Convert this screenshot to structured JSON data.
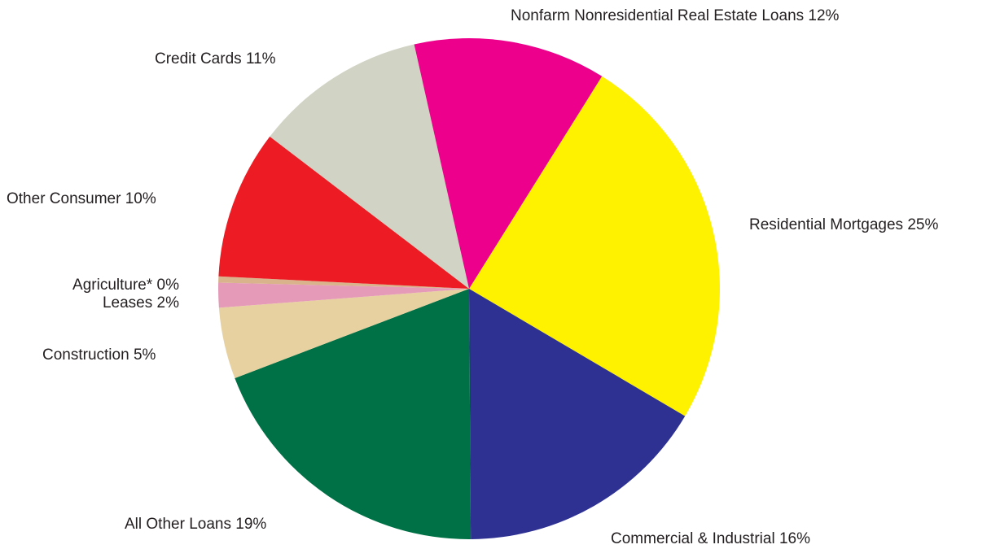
{
  "chart_data": {
    "type": "pie",
    "categories": [
      "Residential Mortgages",
      "Commercial & Industrial",
      "All Other Loans",
      "Construction",
      "Leases",
      "Agriculture*",
      "Other Consumer",
      "Credit Cards",
      "Nonfarm Nonresidential Real Estate Loans"
    ],
    "values": [
      24.6,
      16.4,
      19.3,
      4.6,
      1.6,
      0.4,
      9.6,
      11.1,
      12.4
    ],
    "value_labels": [
      "25%",
      "16%",
      "19%",
      "5%",
      "2%",
      "0%",
      "10%",
      "11%",
      "12%"
    ],
    "colors": [
      "#fff200",
      "#2e3192",
      "#007046",
      "#e8d1a0",
      "#e59ab8",
      "#d9b38c",
      "#ed1c24",
      "#d1d3c4",
      "#ec008c"
    ]
  }
}
